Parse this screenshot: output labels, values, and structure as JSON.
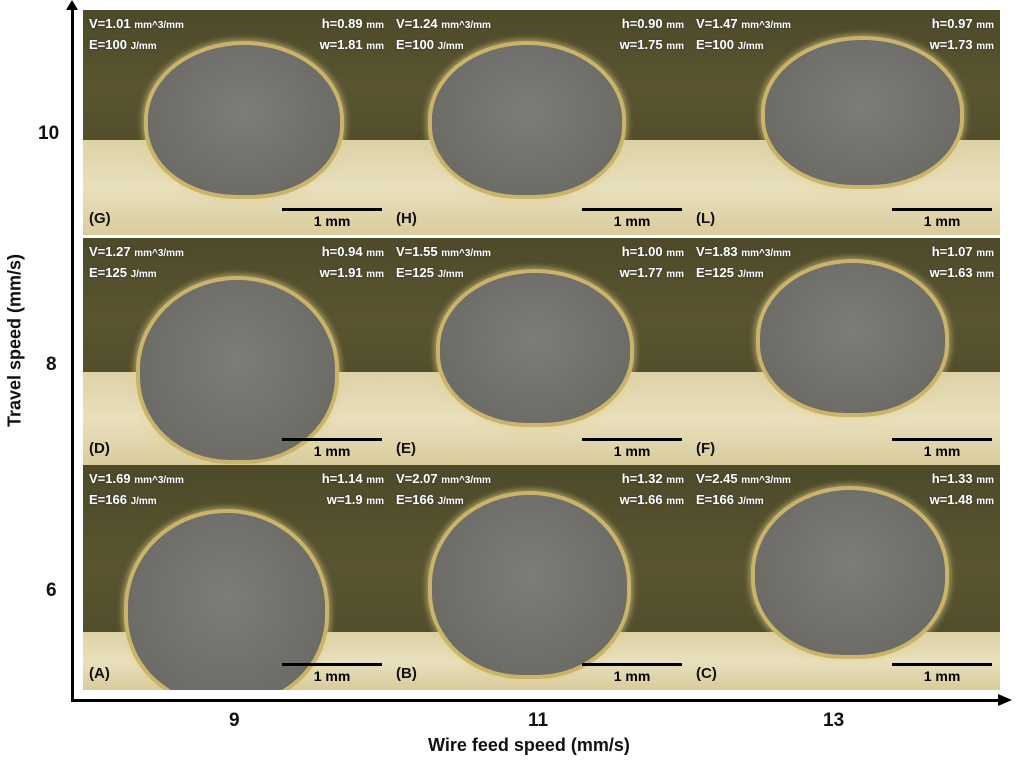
{
  "figure": {
    "x_axis": {
      "label": "Wire feed speed (mm/s)",
      "ticks": [
        "9",
        "11",
        "13"
      ]
    },
    "y_axis": {
      "label": "Travel speed (mm/s)",
      "ticks": [
        "10",
        "8",
        "6"
      ]
    },
    "scale_bar": "1 mm",
    "panels": [
      {
        "label": "(G)",
        "V": "V=1.01",
        "V_unit": "mm^3/mm",
        "E": "E=100",
        "E_unit": "J/mm",
        "h": "h=0.89",
        "w": "w=1.81",
        "unit": "mm"
      },
      {
        "label": "(H)",
        "V": "V=1.24",
        "V_unit": "mm^3/mm",
        "E": "E=100",
        "E_unit": "J/mm",
        "h": "h=0.90",
        "w": "w=1.75",
        "unit": "mm"
      },
      {
        "label": "(L)",
        "V": "V=1.47",
        "V_unit": "mm^3/mm",
        "E": "E=100",
        "E_unit": "J/mm",
        "h": "h=0.97",
        "w": "w=1.73",
        "unit": "mm"
      },
      {
        "label": "(D)",
        "V": "V=1.27",
        "V_unit": "mm^3/mm",
        "E": "E=125",
        "E_unit": "J/mm",
        "h": "h=0.94",
        "w": "w=1.91",
        "unit": "mm"
      },
      {
        "label": "(E)",
        "V": "V=1.55",
        "V_unit": "mm^3/mm",
        "E": "E=125",
        "E_unit": "J/mm",
        "h": "h=1.00",
        "w": "w=1.77",
        "unit": "mm"
      },
      {
        "label": "(F)",
        "V": "V=1.83",
        "V_unit": "mm^3/mm",
        "E": "E=125",
        "E_unit": "J/mm",
        "h": "h=1.07",
        "w": "w=1.63",
        "unit": "mm"
      },
      {
        "label": "(A)",
        "V": "V=1.69",
        "V_unit": "mm^3/mm",
        "E": "E=166",
        "E_unit": "J/mm",
        "h": "h=1.14",
        "w": "w=1.9",
        "unit": "mm"
      },
      {
        "label": "(B)",
        "V": "V=2.07",
        "V_unit": "mm^3/mm",
        "E": "E=166",
        "E_unit": "J/mm",
        "h": "h=1.32",
        "w": "w=1.66",
        "unit": "mm"
      },
      {
        "label": "(C)",
        "V": "V=2.45",
        "V_unit": "mm^3/mm",
        "E": "E=166",
        "E_unit": "J/mm",
        "h": "h=1.33",
        "w": "w=1.48",
        "unit": "mm"
      }
    ]
  }
}
